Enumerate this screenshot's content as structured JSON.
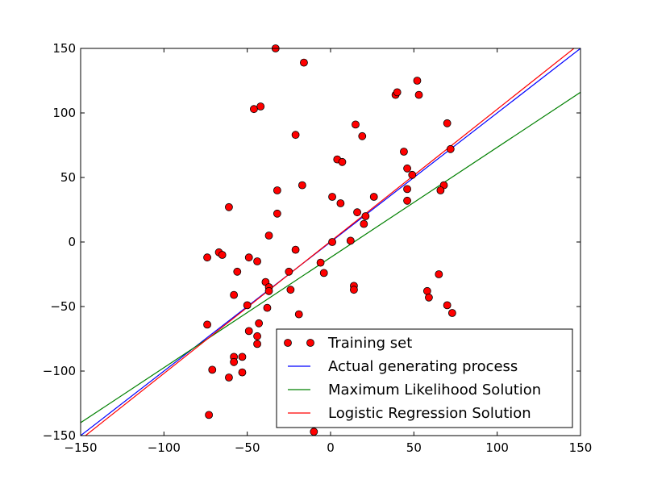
{
  "chart_data": {
    "type": "scatter",
    "title": "",
    "xlabel": "",
    "ylabel": "",
    "xlim": [
      -150,
      150
    ],
    "ylim": [
      -150,
      150
    ],
    "xticks": [
      -150,
      -100,
      -50,
      0,
      50,
      100,
      150
    ],
    "yticks": [
      -150,
      -100,
      -50,
      0,
      50,
      100,
      150
    ],
    "tick_labels_x": [
      "−150",
      "−100",
      "−50",
      "0",
      "50",
      "100",
      "150"
    ],
    "tick_labels_y": [
      "−150",
      "−100",
      "−50",
      "0",
      "50",
      "100",
      "150"
    ],
    "grid": false,
    "legend_position": "lower right",
    "series": [
      {
        "name": "Training set",
        "kind": "points",
        "color": "#ff0000",
        "points": [
          [
            -33,
            150
          ],
          [
            -16,
            139
          ],
          [
            -46,
            103
          ],
          [
            -42,
            105
          ],
          [
            -21,
            83
          ],
          [
            39,
            114
          ],
          [
            40,
            116
          ],
          [
            52,
            125
          ],
          [
            53,
            114
          ],
          [
            15,
            91
          ],
          [
            19,
            82
          ],
          [
            70,
            92
          ],
          [
            72,
            72
          ],
          [
            44,
            70
          ],
          [
            4,
            64
          ],
          [
            7,
            62
          ],
          [
            46,
            57
          ],
          [
            49,
            52
          ],
          [
            -17,
            44
          ],
          [
            -32,
            40
          ],
          [
            1,
            35
          ],
          [
            6,
            30
          ],
          [
            26,
            35
          ],
          [
            46,
            41
          ],
          [
            46,
            32
          ],
          [
            68,
            44
          ],
          [
            66,
            40
          ],
          [
            -61,
            27
          ],
          [
            -32,
            22
          ],
          [
            16,
            23
          ],
          [
            21,
            20
          ],
          [
            20,
            14
          ],
          [
            -37,
            5
          ],
          [
            1,
            0
          ],
          [
            12,
            1
          ],
          [
            -21,
            -6
          ],
          [
            -74,
            -12
          ],
          [
            -67,
            -8
          ],
          [
            -65,
            -10
          ],
          [
            -49,
            -12
          ],
          [
            -44,
            -15
          ],
          [
            -25,
            -23
          ],
          [
            -6,
            -16
          ],
          [
            -56,
            -23
          ],
          [
            -4,
            -24
          ],
          [
            -39,
            -31
          ],
          [
            -37,
            -35
          ],
          [
            -37,
            -38
          ],
          [
            -24,
            -37
          ],
          [
            14,
            -34
          ],
          [
            14,
            -37
          ],
          [
            65,
            -25
          ],
          [
            58,
            -38
          ],
          [
            59,
            -43
          ],
          [
            -58,
            -41
          ],
          [
            -50,
            -49
          ],
          [
            -38,
            -51
          ],
          [
            70,
            -49
          ],
          [
            73,
            -55
          ],
          [
            -19,
            -56
          ],
          [
            -74,
            -64
          ],
          [
            -43,
            -63
          ],
          [
            -49,
            -69
          ],
          [
            -44,
            -73
          ],
          [
            -44,
            -79
          ],
          [
            -58,
            -89
          ],
          [
            -58,
            -93
          ],
          [
            -53,
            -89
          ],
          [
            -53,
            -101
          ],
          [
            -71,
            -99
          ],
          [
            -61,
            -105
          ],
          [
            -73,
            -134
          ],
          [
            -10,
            -147
          ]
        ]
      },
      {
        "name": "Actual generating process",
        "kind": "line",
        "color": "#0000ff",
        "x": [
          -150,
          150
        ],
        "y": [
          -150,
          150
        ]
      },
      {
        "name": "Maximum Likelihood Solution",
        "kind": "line",
        "color": "#008000",
        "x": [
          -150,
          150
        ],
        "y": [
          -140,
          116
        ]
      },
      {
        "name": "Logistic Regression Solution",
        "kind": "line",
        "color": "#ff0000",
        "x": [
          -150,
          150
        ],
        "y": [
          -153,
          154
        ]
      }
    ]
  }
}
